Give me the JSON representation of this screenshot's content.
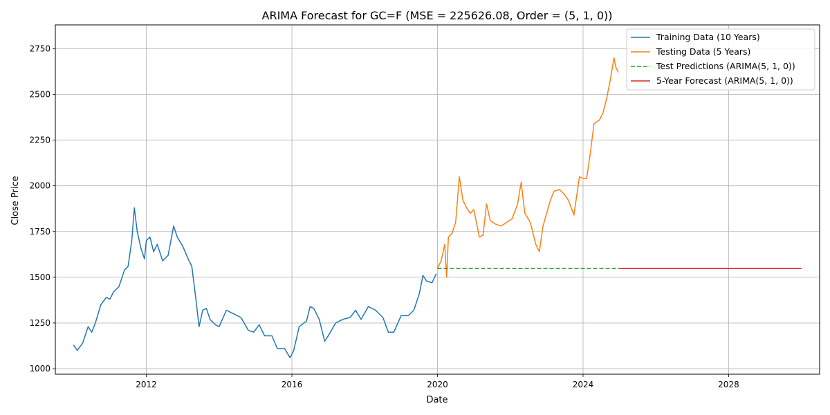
{
  "chart_data": {
    "type": "line",
    "title": "ARIMA Forecast for GC=F (MSE = 225626.08, Order = (5, 1, 0))",
    "xlabel": "Date",
    "ylabel": "Close Price",
    "xlim": [
      2009.5,
      2030.5
    ],
    "ylim": [
      970,
      2880
    ],
    "x_ticks": [
      2012,
      2016,
      2020,
      2024,
      2028
    ],
    "x_tick_labels": [
      "2012",
      "2016",
      "2020",
      "2024",
      "2028"
    ],
    "y_ticks": [
      1000,
      1250,
      1500,
      1750,
      2000,
      2250,
      2500,
      2750
    ],
    "y_tick_labels": [
      "1000",
      "1250",
      "1500",
      "1750",
      "2000",
      "2250",
      "2500",
      "2750"
    ],
    "grid": true,
    "legend_position": "top-right",
    "series": [
      {
        "name": "Training Data (10 Years)",
        "color": "#1f77b4",
        "style": "solid",
        "x": [
          2010.0,
          2010.1,
          2010.25,
          2010.4,
          2010.5,
          2010.6,
          2010.75,
          2010.9,
          2011.0,
          2011.1,
          2011.25,
          2011.4,
          2011.5,
          2011.6,
          2011.67,
          2011.75,
          2011.85,
          2011.95,
          2012.0,
          2012.1,
          2012.2,
          2012.3,
          2012.45,
          2012.6,
          2012.75,
          2012.85,
          2013.0,
          2013.15,
          2013.25,
          2013.35,
          2013.45,
          2013.55,
          2013.65,
          2013.75,
          2013.9,
          2014.0,
          2014.2,
          2014.4,
          2014.6,
          2014.8,
          2014.95,
          2015.1,
          2015.25,
          2015.45,
          2015.6,
          2015.8,
          2015.95,
          2016.05,
          2016.2,
          2016.4,
          2016.5,
          2016.6,
          2016.75,
          2016.9,
          2017.0,
          2017.2,
          2017.4,
          2017.6,
          2017.75,
          2017.9,
          2018.1,
          2018.3,
          2018.5,
          2018.65,
          2018.8,
          2019.0,
          2019.2,
          2019.35,
          2019.5,
          2019.6,
          2019.7,
          2019.85,
          2019.97
        ],
        "values": [
          1130,
          1100,
          1140,
          1230,
          1200,
          1250,
          1350,
          1390,
          1380,
          1420,
          1450,
          1540,
          1560,
          1700,
          1880,
          1750,
          1660,
          1600,
          1700,
          1720,
          1640,
          1680,
          1590,
          1620,
          1780,
          1720,
          1670,
          1600,
          1560,
          1400,
          1230,
          1320,
          1330,
          1270,
          1240,
          1230,
          1320,
          1300,
          1280,
          1210,
          1200,
          1240,
          1180,
          1180,
          1110,
          1110,
          1060,
          1100,
          1230,
          1260,
          1340,
          1330,
          1270,
          1150,
          1180,
          1250,
          1270,
          1280,
          1320,
          1270,
          1340,
          1320,
          1280,
          1200,
          1200,
          1290,
          1290,
          1320,
          1410,
          1510,
          1480,
          1470,
          1520
        ]
      },
      {
        "name": "Testing Data (5 Years)",
        "color": "#ff7f0e",
        "style": "solid",
        "x": [
          2020.0,
          2020.1,
          2020.2,
          2020.25,
          2020.3,
          2020.4,
          2020.5,
          2020.6,
          2020.7,
          2020.8,
          2020.9,
          2021.0,
          2021.15,
          2021.25,
          2021.35,
          2021.45,
          2021.6,
          2021.75,
          2021.9,
          2022.05,
          2022.2,
          2022.3,
          2022.4,
          2022.55,
          2022.7,
          2022.8,
          2022.9,
          2023.0,
          2023.1,
          2023.2,
          2023.35,
          2023.5,
          2023.6,
          2023.75,
          2023.9,
          2024.0,
          2024.1,
          2024.2,
          2024.3,
          2024.45,
          2024.55,
          2024.65,
          2024.75,
          2024.85,
          2024.9,
          2024.97
        ],
        "values": [
          1550,
          1590,
          1680,
          1500,
          1720,
          1740,
          1800,
          2050,
          1920,
          1880,
          1850,
          1870,
          1720,
          1730,
          1900,
          1810,
          1790,
          1780,
          1800,
          1820,
          1900,
          2020,
          1850,
          1800,
          1680,
          1640,
          1780,
          1850,
          1920,
          1970,
          1980,
          1950,
          1920,
          1840,
          2050,
          2040,
          2040,
          2180,
          2340,
          2360,
          2400,
          2480,
          2580,
          2700,
          2650,
          2620
        ]
      },
      {
        "name": "Test Predictions (ARIMA(5, 1, 0))",
        "color": "#2ca02c",
        "style": "dashed",
        "x": [
          2020.0,
          2025.0
        ],
        "values": [
          1548,
          1548
        ]
      },
      {
        "name": "5-Year Forecast (ARIMA(5, 1, 0))",
        "color": "#d62728",
        "style": "solid",
        "x": [
          2025.0,
          2030.0
        ],
        "values": [
          1548,
          1548
        ]
      }
    ]
  }
}
